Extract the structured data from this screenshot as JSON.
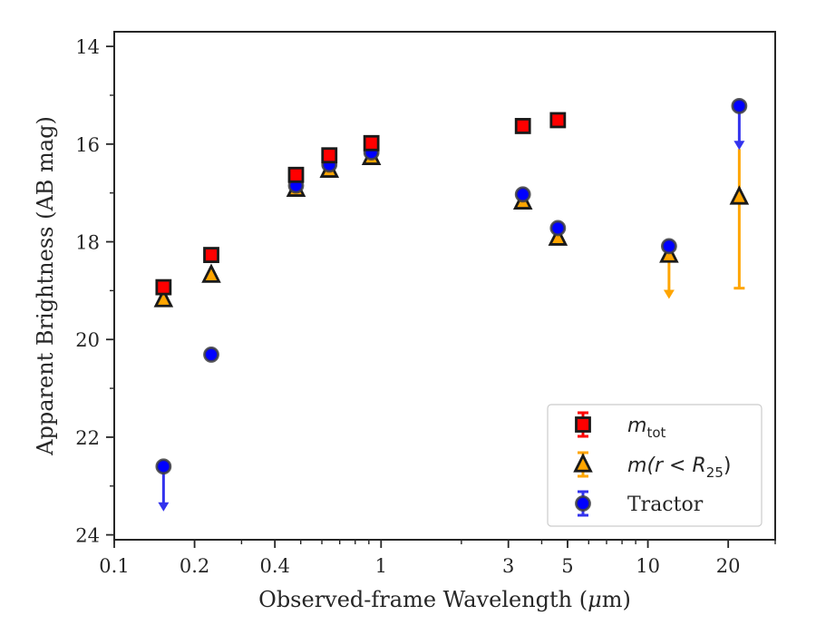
{
  "chart_data": {
    "type": "scatter",
    "xlabel_main": "Observed-frame Wavelength (",
    "xlabel_mu": "μ",
    "xlabel_tail": "m)",
    "ylabel": "Apparent Brightness (AB mag)",
    "xscale": "log",
    "xlim": [
      0.1,
      30
    ],
    "ylim": [
      24.1,
      13.7
    ],
    "y_inverted": true,
    "xticks": [
      {
        "value": 0.1,
        "label": "0.1"
      },
      {
        "value": 0.2,
        "label": "0.2"
      },
      {
        "value": 0.4,
        "label": "0.4"
      },
      {
        "value": 1,
        "label": "1"
      },
      {
        "value": 3,
        "label": "3"
      },
      {
        "value": 5,
        "label": "5"
      },
      {
        "value": 10,
        "label": "10"
      },
      {
        "value": 20,
        "label": "20"
      }
    ],
    "yticks": [
      {
        "value": 14,
        "label": "14"
      },
      {
        "value": 16,
        "label": "16"
      },
      {
        "value": 18,
        "label": "18"
      },
      {
        "value": 20,
        "label": "20"
      },
      {
        "value": 22,
        "label": "22"
      },
      {
        "value": 24,
        "label": "24"
      }
    ],
    "grid": false,
    "legend_position": "bottom-right",
    "series": [
      {
        "key": "mtot",
        "label_base": "m",
        "label_sub": "tot",
        "marker": "square",
        "face": "#ff0000",
        "edge": "#1a1a1a",
        "err": "#ff0000",
        "points": [
          {
            "x": 0.153,
            "y": 18.93
          },
          {
            "x": 0.231,
            "y": 18.27
          },
          {
            "x": 0.48,
            "y": 16.63
          },
          {
            "x": 0.64,
            "y": 16.23
          },
          {
            "x": 0.92,
            "y": 15.98
          },
          {
            "x": 3.4,
            "y": 15.63
          },
          {
            "x": 4.6,
            "y": 15.51
          }
        ]
      },
      {
        "key": "mr25",
        "label_base": "m",
        "label_paren": "(r < R",
        "label_sub": "25",
        "label_close": ")",
        "marker": "triangle",
        "face": "#ffa500",
        "edge": "#1a1a1a",
        "err": "#ffa500",
        "points": [
          {
            "x": 0.153,
            "y": 19.18
          },
          {
            "x": 0.231,
            "y": 18.68
          },
          {
            "x": 0.48,
            "y": 16.92
          },
          {
            "x": 0.64,
            "y": 16.53
          },
          {
            "x": 0.92,
            "y": 16.27
          },
          {
            "x": 3.4,
            "y": 17.18
          },
          {
            "x": 4.6,
            "y": 17.92
          },
          {
            "x": 12,
            "y": 18.27,
            "upper_limit": true,
            "limit_to": 19.15
          },
          {
            "x": 22,
            "y": 17.08,
            "err_low": 16.1,
            "err_high": 18.95
          }
        ]
      },
      {
        "key": "tractor",
        "label": "Tractor",
        "marker": "circle",
        "face": "#0000ff",
        "edge": "#404040",
        "err": "#3333ee",
        "points": [
          {
            "x": 0.153,
            "y": 22.6,
            "upper_limit": true,
            "limit_to": 23.5
          },
          {
            "x": 0.231,
            "y": 20.31
          },
          {
            "x": 0.48,
            "y": 16.85
          },
          {
            "x": 0.64,
            "y": 16.42
          },
          {
            "x": 0.92,
            "y": 16.17
          },
          {
            "x": 3.4,
            "y": 17.03
          },
          {
            "x": 4.6,
            "y": 17.72
          },
          {
            "x": 12,
            "y": 18.09
          },
          {
            "x": 22,
            "y": 15.22,
            "upper_limit": true,
            "limit_to": 16.1
          }
        ]
      }
    ]
  }
}
